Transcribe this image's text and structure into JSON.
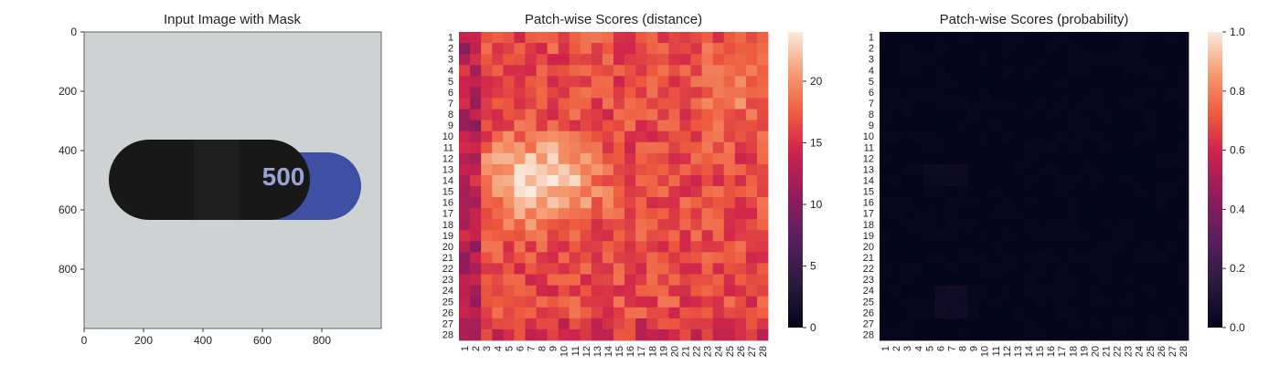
{
  "chart_data": [
    {
      "type": "image",
      "title": "Input Image with Mask",
      "x_ticks": [
        0,
        200,
        400,
        600,
        800
      ],
      "y_ticks": [
        0,
        200,
        400,
        600,
        800
      ],
      "xlim": [
        0,
        1000
      ],
      "ylim": [
        1000,
        0
      ],
      "capsule_text": "500",
      "colors": {
        "background": "#CFD2D3",
        "capsule_black": "#181818",
        "capsule_blue": "#3F4FA3"
      }
    },
    {
      "type": "heatmap",
      "title": "Patch-wise Scores (distance)",
      "rows": 28,
      "cols": 28,
      "colormap": "rocket",
      "colorbar_ticks": [
        0,
        5,
        10,
        15,
        20
      ],
      "vmin": 0,
      "vmax": 24,
      "base_value": 16.5,
      "hot_spot": {
        "row": 14,
        "col": 8,
        "peak": 24
      },
      "secondary_spot": {
        "row": 6,
        "col": 25,
        "peak": 20
      }
    },
    {
      "type": "heatmap",
      "title": "Patch-wise Scores (probability)",
      "rows": 28,
      "cols": 28,
      "colormap": "rocket",
      "colorbar_ticks": [
        "0.0",
        "0.2",
        "0.4",
        "0.6",
        "0.8",
        "1.0"
      ],
      "vmin": 0,
      "vmax": 1,
      "base_value": 0.0
    }
  ]
}
